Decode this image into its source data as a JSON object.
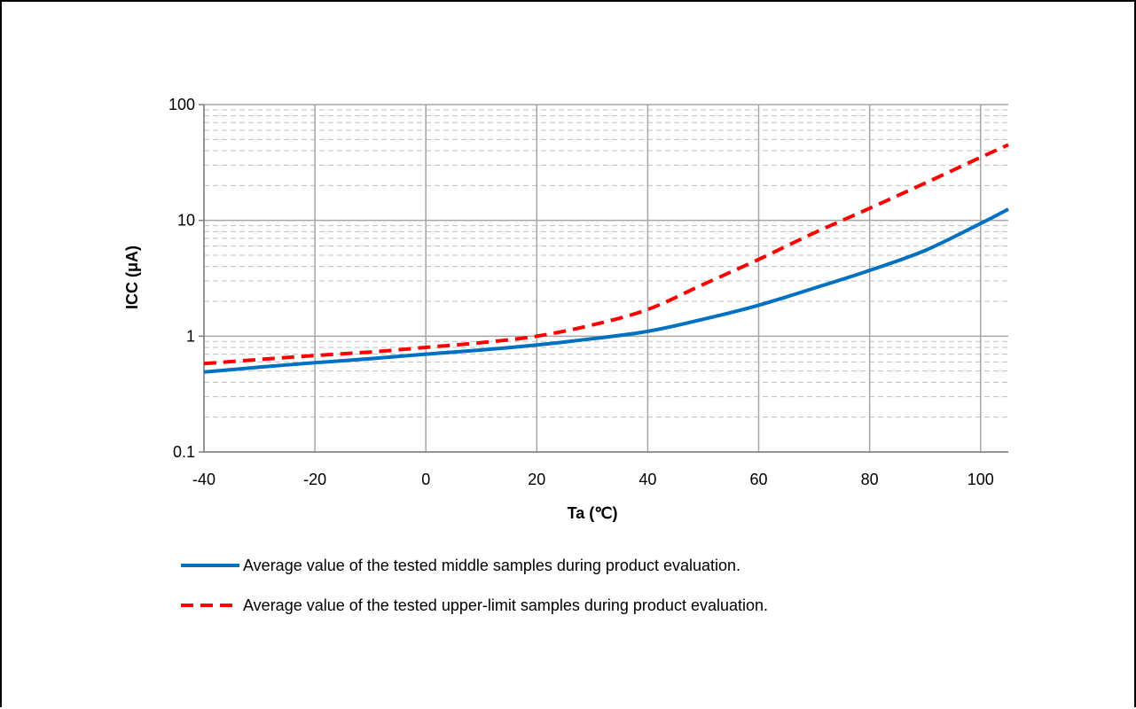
{
  "chart_data": {
    "type": "line",
    "title": "",
    "xlabel": "Ta (℃)",
    "ylabel": "ICC (μA)",
    "xlim": [
      -40,
      105
    ],
    "ylim": [
      0.1,
      100
    ],
    "y_scale": "log",
    "grid": true,
    "legend_position": "bottom",
    "x_ticks": [
      -40,
      -20,
      0,
      20,
      40,
      60,
      80,
      100
    ],
    "x_tick_labels": [
      "-40",
      "-20",
      "0",
      "20",
      "40",
      "60",
      "80",
      "100"
    ],
    "y_ticks": [
      0.1,
      1,
      10,
      100
    ],
    "y_tick_labels": [
      "0.1",
      "1",
      "10",
      "100"
    ],
    "series": [
      {
        "name": "Average value of the tested middle samples during product evaluation.",
        "color": "#0070C0",
        "style": "solid",
        "x": [
          -40,
          -30,
          -20,
          -10,
          0,
          10,
          20,
          30,
          40,
          50,
          60,
          70,
          80,
          90,
          100,
          105
        ],
        "y": [
          0.49,
          0.54,
          0.59,
          0.64,
          0.7,
          0.76,
          0.84,
          0.95,
          1.1,
          1.4,
          1.85,
          2.6,
          3.7,
          5.5,
          9.4,
          12.5
        ]
      },
      {
        "name": "Average value of the tested upper-limit samples during product evaluation.",
        "color": "#FF0000",
        "style": "dashed",
        "x": [
          -40,
          -30,
          -20,
          -10,
          0,
          10,
          20,
          30,
          40,
          50,
          60,
          70,
          80,
          90,
          100,
          105
        ],
        "y": [
          0.58,
          0.63,
          0.68,
          0.73,
          0.8,
          0.88,
          1.0,
          1.25,
          1.7,
          2.8,
          4.6,
          7.8,
          12.7,
          21,
          35,
          45
        ]
      }
    ]
  }
}
